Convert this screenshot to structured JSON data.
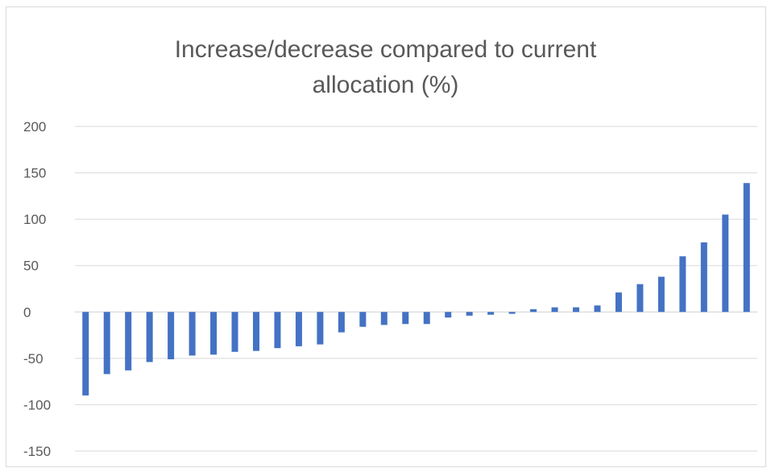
{
  "chart_data": {
    "type": "bar",
    "title_lines": [
      "Increase/decrease compared to current",
      "allocation (%)"
    ],
    "xlabel": "",
    "ylabel": "",
    "ylim": [
      -150,
      200
    ],
    "yticks": [
      200,
      150,
      100,
      50,
      0,
      -50,
      -100,
      -150
    ],
    "grid": true,
    "legend": "none",
    "bar_color": "#4472c4",
    "values": [
      -90,
      -67,
      -63,
      -54,
      -51,
      -47,
      -46,
      -43,
      -42,
      -39,
      -37,
      -35,
      -22,
      -16,
      -14,
      -13,
      -13,
      -6,
      -4,
      -3,
      -2,
      3,
      5,
      5,
      7,
      21,
      30,
      38,
      60,
      75,
      105,
      139
    ]
  }
}
